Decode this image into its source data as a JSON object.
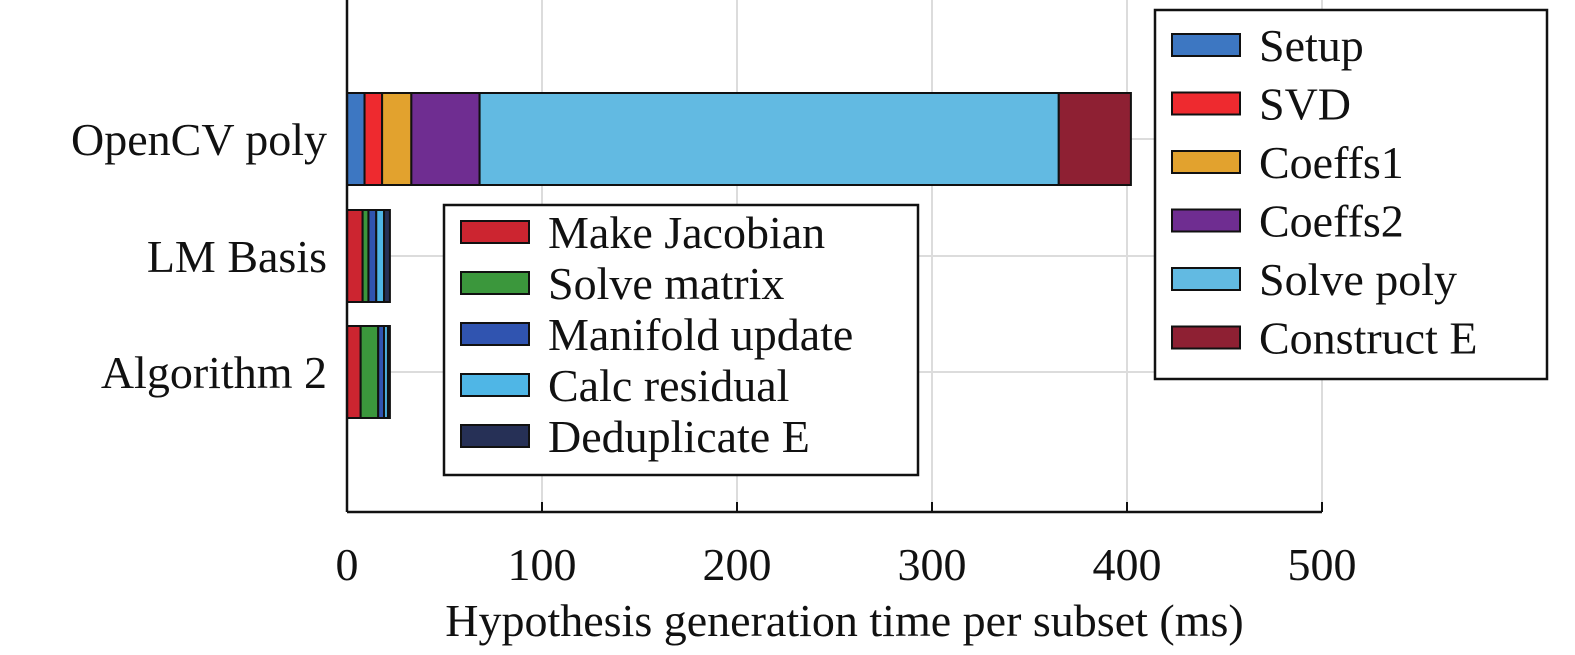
{
  "chart_data": {
    "type": "bar",
    "orientation": "horizontal",
    "stacked": true,
    "title": "",
    "xlabel": "Hypothesis generation time per subset (ms)",
    "ylabel": "",
    "xlim": [
      0,
      500
    ],
    "xticks": [
      "0",
      "100",
      "200",
      "300",
      "400",
      "500"
    ],
    "grid": true,
    "categories": [
      "OpenCV poly",
      "LM Basis",
      "Algorithm 2"
    ],
    "stacks": [
      {
        "category": "OpenCV poly",
        "segments": [
          {
            "name": "Setup",
            "value": 9
          },
          {
            "name": "SVD",
            "value": 9
          },
          {
            "name": "Coeffs1",
            "value": 15
          },
          {
            "name": "Coeffs2",
            "value": 35
          },
          {
            "name": "Solve poly",
            "value": 297
          },
          {
            "name": "Construct E",
            "value": 37
          }
        ]
      },
      {
        "category": "LM Basis",
        "segments": [
          {
            "name": "Make Jacobian",
            "value": 8
          },
          {
            "name": "Solve matrix",
            "value": 3
          },
          {
            "name": "Manifold update",
            "value": 4
          },
          {
            "name": "Calc residual",
            "value": 4
          },
          {
            "name": "Deduplicate E",
            "value": 3
          }
        ]
      },
      {
        "category": "Algorithm 2",
        "segments": [
          {
            "name": "Make Jacobian",
            "value": 7
          },
          {
            "name": "Solve matrix",
            "value": 9
          },
          {
            "name": "Manifold update",
            "value": 3
          },
          {
            "name": "Calc residual",
            "value": 2
          },
          {
            "name": "Deduplicate E",
            "value": 1
          }
        ]
      }
    ],
    "colors": {
      "Setup": "#3d77c2",
      "SVD": "#ee2a2f",
      "Coeffs1": "#e2a22e",
      "Coeffs2": "#6f2d91",
      "Solve poly": "#62bae2",
      "Construct E": "#8e2033",
      "Make Jacobian": "#cc2530",
      "Solve matrix": "#3b973c",
      "Manifold update": "#3054b0",
      "Calc residual": "#4fb6e6",
      "Deduplicate E": "#263056"
    },
    "legends": [
      {
        "placement": "top-right",
        "entries": [
          "Setup",
          "SVD",
          "Coeffs1",
          "Coeffs2",
          "Solve poly",
          "Construct E"
        ]
      },
      {
        "placement": "center-left",
        "entries": [
          "Make Jacobian",
          "Solve matrix",
          "Manifold update",
          "Calc residual",
          "Deduplicate E"
        ]
      }
    ]
  }
}
